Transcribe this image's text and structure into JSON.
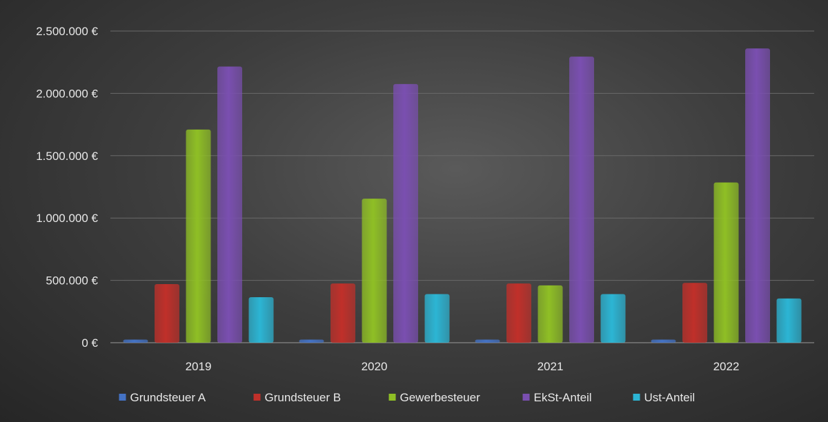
{
  "chart_data": {
    "type": "bar",
    "title": "",
    "xlabel": "",
    "ylabel": "",
    "categories": [
      "2019",
      "2020",
      "2021",
      "2022"
    ],
    "ylim": [
      0,
      2500000
    ],
    "yticks": [
      0,
      500000,
      1000000,
      1500000,
      2000000,
      2500000
    ],
    "ytick_labels": [
      "0 €",
      "500.000 €",
      "1.000.000 €",
      "1.500.000 €",
      "2.000.000 €",
      "2.500.000 €"
    ],
    "grid": true,
    "legend_position": "bottom",
    "series": [
      {
        "name": "Grundsteuer A",
        "color": "#4472c4",
        "values": [
          25000,
          25000,
          25000,
          25000
        ]
      },
      {
        "name": "Grundsteuer B",
        "color": "#c0302a",
        "values": [
          470000,
          475000,
          475000,
          480000
        ]
      },
      {
        "name": "Gewerbesteuer",
        "color": "#8fbf25",
        "values": [
          1710000,
          1155000,
          460000,
          1285000
        ]
      },
      {
        "name": "EkSt-Anteil",
        "color": "#7a4fb0",
        "values": [
          2215000,
          2075000,
          2295000,
          2360000
        ]
      },
      {
        "name": "Ust-Anteil",
        "color": "#2cb5d4",
        "values": [
          365000,
          390000,
          390000,
          355000
        ]
      }
    ]
  }
}
